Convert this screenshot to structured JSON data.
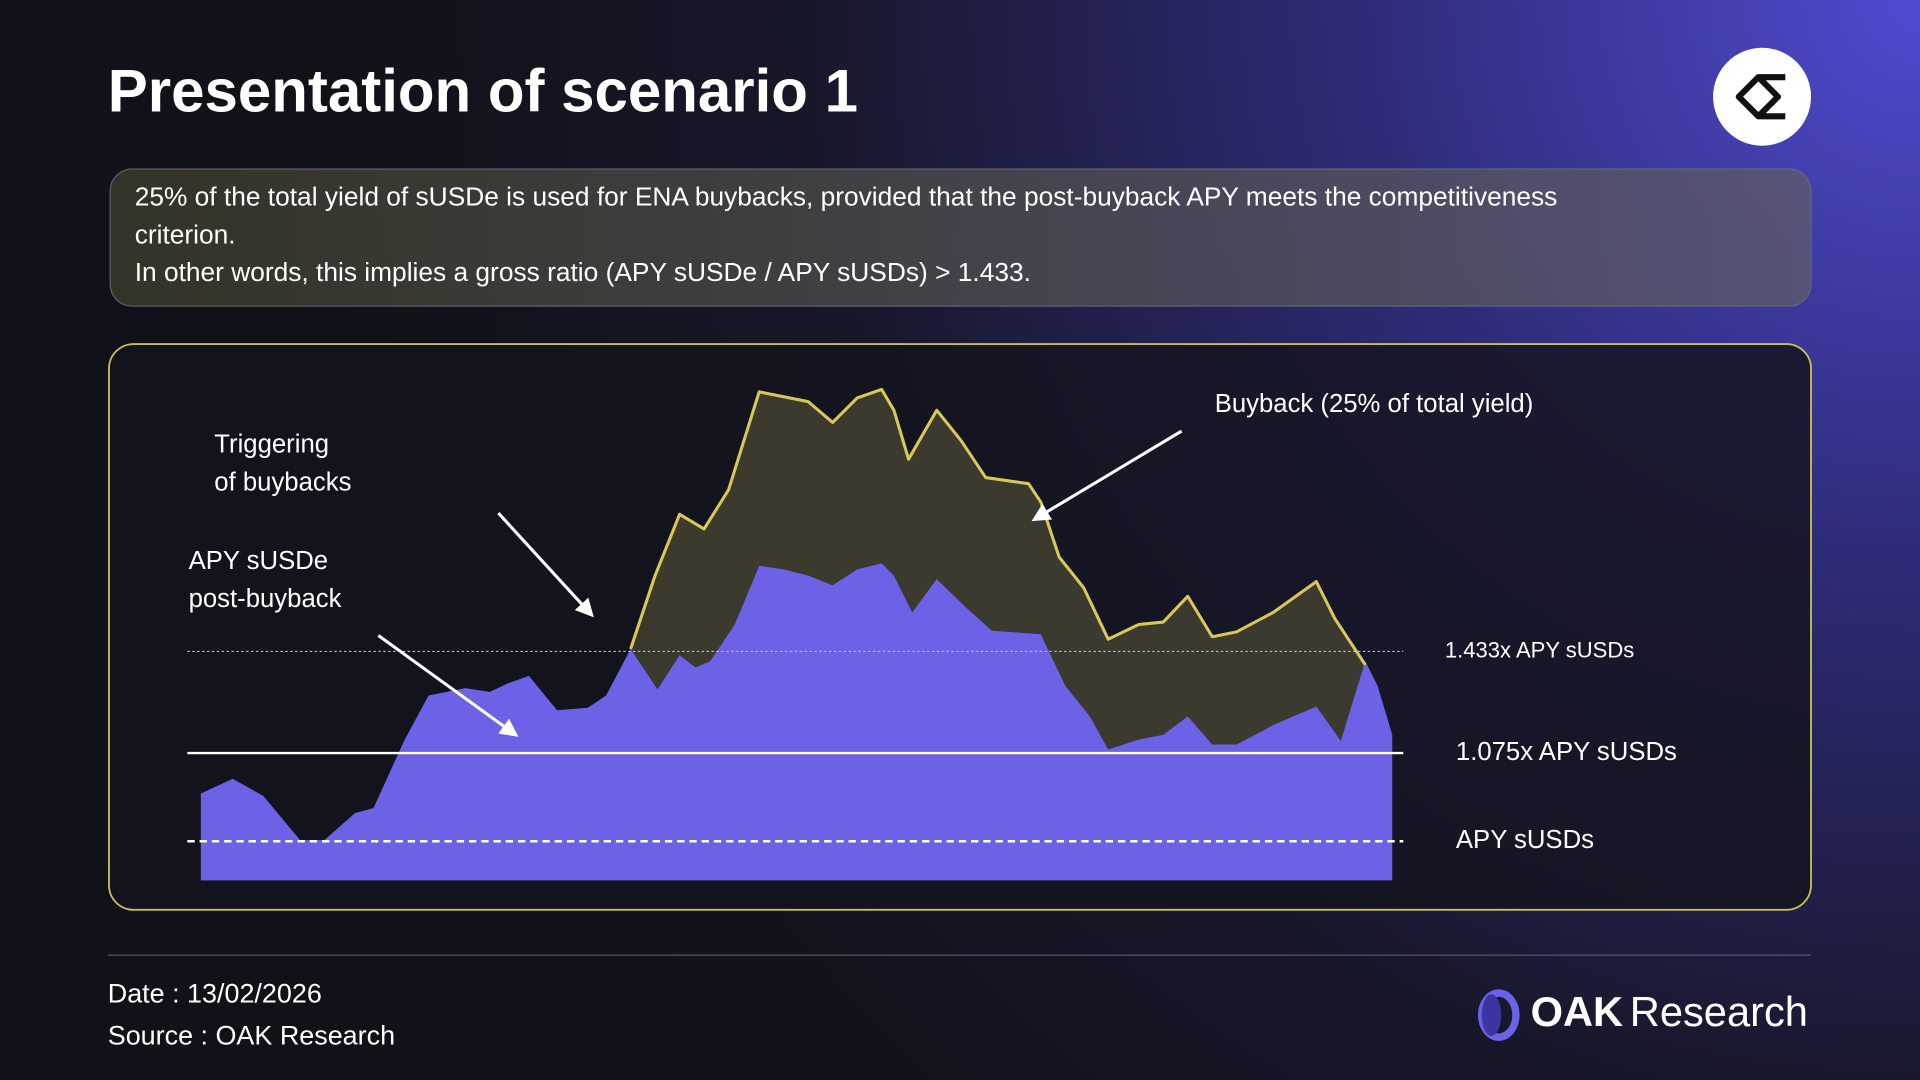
{
  "header": {
    "title": "Presentation of scenario 1"
  },
  "description": {
    "lines": [
      "25% of the total yield of sUSDe is used for ENA buybacks, provided that the post-buyback APY meets the competitiveness",
      "criterion.",
      "In other words, this implies a gross ratio (APY sUSDe / APY sUSDs) > 1.433."
    ]
  },
  "diagram": {
    "annotations": {
      "buyback": "Buyback (25% of total yield)",
      "triggering": [
        "Triggering",
        "of buybacks"
      ],
      "post_buyback": [
        "APY sUSDe",
        "post-buyback"
      ]
    },
    "levels": [
      "1.433x APY sUSDs",
      "1.075x APY sUSDs",
      "APY sUSDs"
    ]
  },
  "footer": {
    "date": "Date : 13/02/2026",
    "source": "Source : OAK Research"
  },
  "logo": {
    "brand": "OAK",
    "suffix": "Research"
  }
}
